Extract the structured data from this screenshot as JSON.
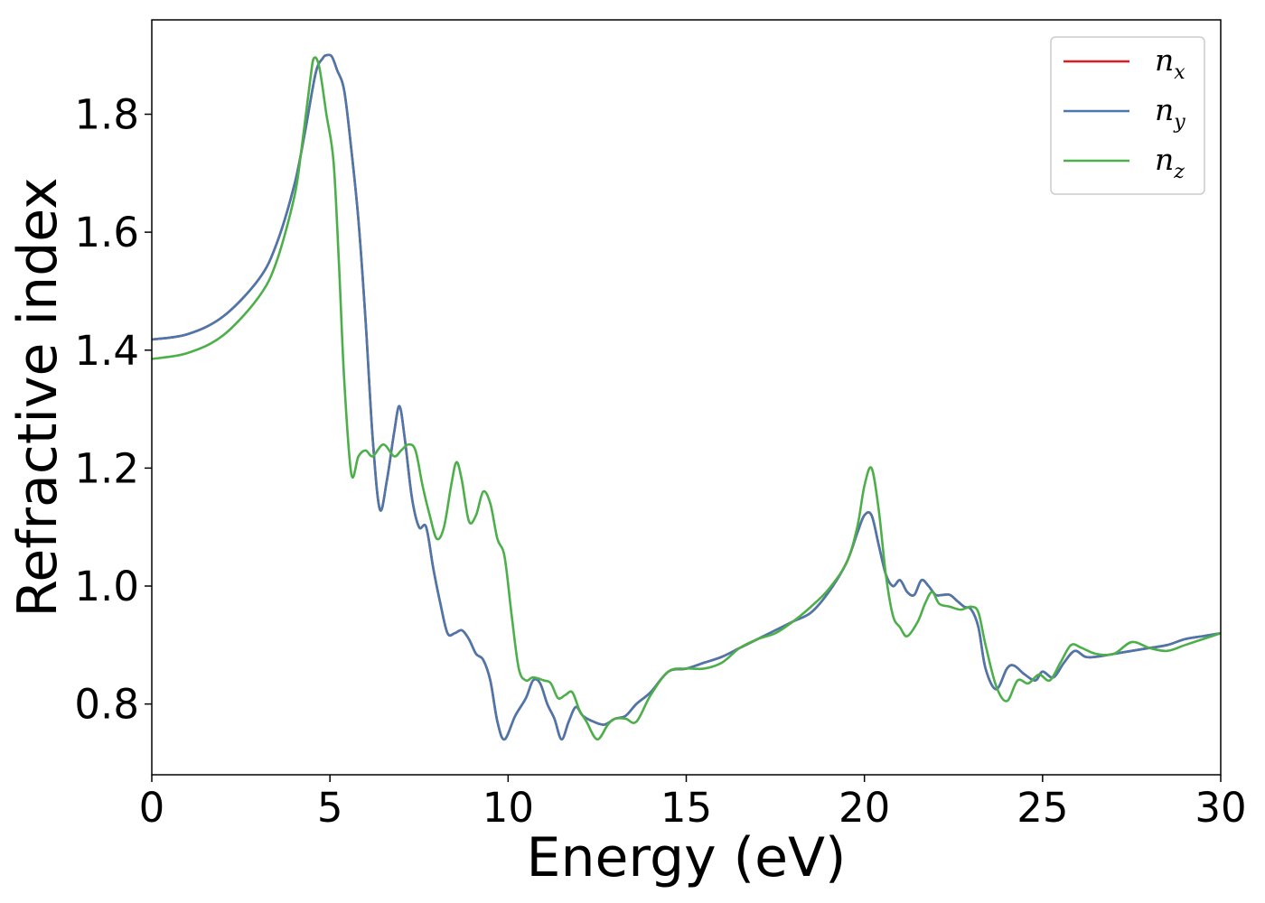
{
  "chart_data": {
    "type": "line",
    "xlabel": "Energy (eV)",
    "ylabel": "Refractive index",
    "xlim": [
      0,
      30
    ],
    "ylim": [
      0.68,
      1.96
    ],
    "xticks": [
      0,
      5,
      10,
      15,
      20,
      25,
      30
    ],
    "xtick_labels": [
      "0",
      "5",
      "10",
      "15",
      "20",
      "25",
      "30"
    ],
    "yticks": [
      0.8,
      1.0,
      1.2,
      1.4,
      1.6,
      1.8
    ],
    "ytick_labels": [
      "0.8",
      "1.0",
      "1.2",
      "1.4",
      "1.6",
      "1.8"
    ],
    "grid": false,
    "legend_position": "top-right",
    "series": [
      {
        "name": "n_x",
        "legend_base": "n",
        "legend_sub": "x",
        "color": "#e41a1c",
        "x": [
          0,
          1,
          2,
          3,
          3.5,
          4,
          4.3,
          4.6,
          4.8,
          4.9,
          5.05,
          5.2,
          5.4,
          5.6,
          5.8,
          6.0,
          6.2,
          6.4,
          6.6,
          6.8,
          6.95,
          7.1,
          7.3,
          7.5,
          7.7,
          7.9,
          8.1,
          8.3,
          8.5,
          8.7,
          8.9,
          9.1,
          9.3,
          9.5,
          9.7,
          9.9,
          10.2,
          10.5,
          10.7,
          10.9,
          11.1,
          11.3,
          11.5,
          11.7,
          11.9,
          12.1,
          12.4,
          12.7,
          13.0,
          13.3,
          13.6,
          14.0,
          14.5,
          15.0,
          15.5,
          16.0,
          16.5,
          17.0,
          17.5,
          18.0,
          18.5,
          19.0,
          19.5,
          19.8,
          20.0,
          20.2,
          20.4,
          20.6,
          20.8,
          21.0,
          21.2,
          21.4,
          21.6,
          21.8,
          22.0,
          22.2,
          22.4,
          22.6,
          22.8,
          23.0,
          23.2,
          23.4,
          23.7,
          24.0,
          24.2,
          24.5,
          24.8,
          25.0,
          25.3,
          25.6,
          25.9,
          26.2,
          26.5,
          27.0,
          27.5,
          28.0,
          28.5,
          29.0,
          29.5,
          30.0
        ],
        "y": [
          1.418,
          1.427,
          1.457,
          1.52,
          1.58,
          1.68,
          1.77,
          1.87,
          1.895,
          1.9,
          1.898,
          1.875,
          1.84,
          1.74,
          1.62,
          1.45,
          1.25,
          1.13,
          1.18,
          1.26,
          1.305,
          1.25,
          1.15,
          1.1,
          1.1,
          1.03,
          0.97,
          0.92,
          0.92,
          0.925,
          0.91,
          0.885,
          0.875,
          0.84,
          0.77,
          0.74,
          0.78,
          0.81,
          0.84,
          0.835,
          0.8,
          0.775,
          0.74,
          0.77,
          0.795,
          0.78,
          0.77,
          0.765,
          0.775,
          0.78,
          0.8,
          0.82,
          0.855,
          0.86,
          0.87,
          0.88,
          0.895,
          0.91,
          0.925,
          0.94,
          0.955,
          0.99,
          1.04,
          1.09,
          1.12,
          1.12,
          1.07,
          1.02,
          1.0,
          1.01,
          0.99,
          0.985,
          1.01,
          1.0,
          0.985,
          0.985,
          0.985,
          0.975,
          0.965,
          0.96,
          0.93,
          0.86,
          0.825,
          0.86,
          0.865,
          0.85,
          0.84,
          0.855,
          0.845,
          0.87,
          0.89,
          0.88,
          0.88,
          0.885,
          0.89,
          0.895,
          0.9,
          0.91,
          0.915,
          0.92
        ]
      },
      {
        "name": "n_y",
        "legend_base": "n",
        "legend_sub": "y",
        "color": "#4a78ac",
        "x": [
          0,
          1,
          2,
          3,
          3.5,
          4,
          4.3,
          4.6,
          4.8,
          4.9,
          5.05,
          5.2,
          5.4,
          5.6,
          5.8,
          6.0,
          6.2,
          6.4,
          6.6,
          6.8,
          6.95,
          7.1,
          7.3,
          7.5,
          7.7,
          7.9,
          8.1,
          8.3,
          8.5,
          8.7,
          8.9,
          9.1,
          9.3,
          9.5,
          9.7,
          9.9,
          10.2,
          10.5,
          10.7,
          10.9,
          11.1,
          11.3,
          11.5,
          11.7,
          11.9,
          12.1,
          12.4,
          12.7,
          13.0,
          13.3,
          13.6,
          14.0,
          14.5,
          15.0,
          15.5,
          16.0,
          16.5,
          17.0,
          17.5,
          18.0,
          18.5,
          19.0,
          19.5,
          19.8,
          20.0,
          20.2,
          20.4,
          20.6,
          20.8,
          21.0,
          21.2,
          21.4,
          21.6,
          21.8,
          22.0,
          22.2,
          22.4,
          22.6,
          22.8,
          23.0,
          23.2,
          23.4,
          23.7,
          24.0,
          24.2,
          24.5,
          24.8,
          25.0,
          25.3,
          25.6,
          25.9,
          26.2,
          26.5,
          27.0,
          27.5,
          28.0,
          28.5,
          29.0,
          29.5,
          30.0
        ],
        "y": [
          1.418,
          1.427,
          1.457,
          1.52,
          1.58,
          1.68,
          1.77,
          1.87,
          1.895,
          1.9,
          1.898,
          1.875,
          1.84,
          1.74,
          1.62,
          1.45,
          1.25,
          1.13,
          1.18,
          1.26,
          1.305,
          1.25,
          1.15,
          1.1,
          1.1,
          1.03,
          0.97,
          0.92,
          0.92,
          0.925,
          0.91,
          0.885,
          0.875,
          0.84,
          0.77,
          0.74,
          0.78,
          0.81,
          0.84,
          0.835,
          0.8,
          0.775,
          0.74,
          0.77,
          0.795,
          0.78,
          0.77,
          0.765,
          0.775,
          0.78,
          0.8,
          0.82,
          0.855,
          0.86,
          0.87,
          0.88,
          0.895,
          0.91,
          0.925,
          0.94,
          0.955,
          0.99,
          1.04,
          1.09,
          1.12,
          1.12,
          1.07,
          1.02,
          1.0,
          1.01,
          0.99,
          0.985,
          1.01,
          1.0,
          0.985,
          0.985,
          0.985,
          0.975,
          0.965,
          0.96,
          0.93,
          0.86,
          0.825,
          0.86,
          0.865,
          0.85,
          0.84,
          0.855,
          0.845,
          0.87,
          0.89,
          0.88,
          0.88,
          0.885,
          0.89,
          0.895,
          0.9,
          0.91,
          0.915,
          0.92
        ]
      },
      {
        "name": "n_z",
        "legend_base": "n",
        "legend_sub": "z",
        "color": "#4daf4a",
        "x": [
          0,
          1,
          2,
          3,
          3.5,
          4,
          4.2,
          4.45,
          4.55,
          4.7,
          4.9,
          5.1,
          5.25,
          5.4,
          5.6,
          5.8,
          6.0,
          6.2,
          6.5,
          6.8,
          7.0,
          7.2,
          7.4,
          7.6,
          7.8,
          8.0,
          8.2,
          8.4,
          8.55,
          8.7,
          8.9,
          9.1,
          9.3,
          9.5,
          9.7,
          9.9,
          10.1,
          10.3,
          10.5,
          10.7,
          11.0,
          11.2,
          11.4,
          11.6,
          11.8,
          12.0,
          12.2,
          12.5,
          12.8,
          13.0,
          13.3,
          13.6,
          14.0,
          14.5,
          15.0,
          15.5,
          16.0,
          16.5,
          17.0,
          17.5,
          18.0,
          18.5,
          19.0,
          19.5,
          19.8,
          20.0,
          20.2,
          20.4,
          20.6,
          20.8,
          21.0,
          21.2,
          21.5,
          21.7,
          21.9,
          22.1,
          22.4,
          22.7,
          23.0,
          23.2,
          23.4,
          23.7,
          24.0,
          24.3,
          24.6,
          24.9,
          25.2,
          25.5,
          25.8,
          26.1,
          26.5,
          27.0,
          27.5,
          28.0,
          28.5,
          29.0,
          29.5,
          30.0
        ],
        "y": [
          1.385,
          1.395,
          1.425,
          1.49,
          1.55,
          1.66,
          1.74,
          1.86,
          1.895,
          1.88,
          1.8,
          1.72,
          1.55,
          1.35,
          1.19,
          1.22,
          1.23,
          1.22,
          1.24,
          1.22,
          1.23,
          1.24,
          1.23,
          1.17,
          1.12,
          1.08,
          1.1,
          1.17,
          1.21,
          1.18,
          1.11,
          1.12,
          1.16,
          1.14,
          1.08,
          1.05,
          0.95,
          0.86,
          0.84,
          0.845,
          0.84,
          0.835,
          0.81,
          0.815,
          0.82,
          0.79,
          0.77,
          0.74,
          0.765,
          0.775,
          0.775,
          0.77,
          0.815,
          0.855,
          0.86,
          0.86,
          0.87,
          0.895,
          0.91,
          0.92,
          0.94,
          0.965,
          0.995,
          1.04,
          1.1,
          1.17,
          1.2,
          1.13,
          1.02,
          0.95,
          0.93,
          0.915,
          0.94,
          0.97,
          0.99,
          0.97,
          0.965,
          0.96,
          0.965,
          0.955,
          0.9,
          0.83,
          0.805,
          0.84,
          0.835,
          0.85,
          0.84,
          0.87,
          0.9,
          0.895,
          0.885,
          0.885,
          0.905,
          0.895,
          0.89,
          0.9,
          0.91,
          0.92
        ]
      }
    ]
  }
}
